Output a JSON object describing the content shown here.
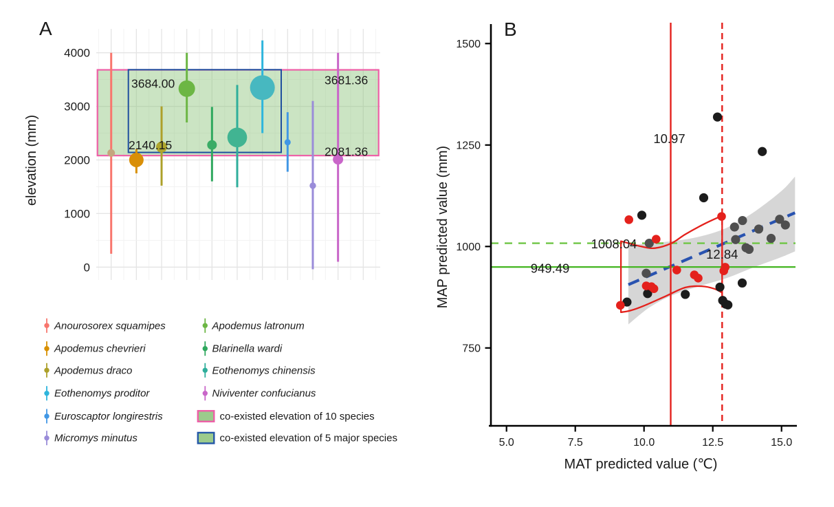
{
  "figure": {
    "panel_a_label": "A",
    "panel_b_label": "B",
    "background": "#ffffff"
  },
  "chart_data": [
    {
      "type": "scatter",
      "panel": "A",
      "ylabel": "elevation (mm)",
      "yticks": [
        0,
        1000,
        2000,
        3000,
        4000
      ],
      "ytick_labels": [
        "0",
        "1000",
        "2000",
        "3000",
        "4000"
      ],
      "ylim": [
        -500,
        4600
      ],
      "grid": true,
      "species": [
        {
          "name": "Anourosorex squamipes",
          "color": "#F8766D",
          "dot_color": "#C4A67E",
          "range_low": 250,
          "range_high": 4000,
          "dot_value": 2130,
          "dot_radius": 5.5
        },
        {
          "name": "Apodemus chevrieri",
          "color": "#D89000",
          "dot_color": "#D98F07",
          "range_low": 1750,
          "range_high": 2200,
          "dot_value": 2000,
          "dot_radius": 10.5
        },
        {
          "name": "Apodemus draco",
          "color": "#ADA02A",
          "dot_color": "#AFA62E",
          "range_low": 1520,
          "range_high": 3000,
          "dot_value": 2240,
          "dot_radius": 8
        },
        {
          "name": "Apodemus latronum",
          "color": "#6CB644",
          "dot_color": "#6CB644",
          "range_low": 2700,
          "range_high": 4000,
          "dot_value": 3330,
          "dot_radius": 12
        },
        {
          "name": "Blarinella wardi",
          "color": "#2FA85E",
          "dot_color": "#3BAC66",
          "range_low": 1600,
          "range_high": 2990,
          "dot_value": 2280,
          "dot_radius": 7
        },
        {
          "name": "Eothenomys chinensis",
          "color": "#2FAE9B",
          "dot_color": "#41B492",
          "range_low": 1490,
          "range_high": 3400,
          "dot_value": 2420,
          "dot_radius": 14.3
        },
        {
          "name": "Eothenomys proditor",
          "color": "#2EB5DC",
          "dot_color": "#47B8C0",
          "range_low": 2500,
          "range_high": 4230,
          "dot_value": 3350,
          "dot_radius": 18
        },
        {
          "name": "Euroscaptor longirestris",
          "color": "#4197E5",
          "dot_color": "#4197E5",
          "range_low": 1780,
          "range_high": 2890,
          "dot_value": 2330,
          "dot_radius": 4.5
        },
        {
          "name": "Micromys minutus",
          "color": "#9A8CD9",
          "dot_color": "#9A8CD9",
          "range_low": -40,
          "range_high": 3100,
          "dot_value": 1520,
          "dot_radius": 4.7
        },
        {
          "name": "Niviventer confucianus",
          "color": "#C966C9",
          "dot_color": "#C966C9",
          "range_low": 100,
          "range_high": 4000,
          "dot_value": 2010,
          "dot_radius": 7.5
        }
      ],
      "regions": [
        {
          "name": "co-existed elevation of 10 species",
          "low": 2081.36,
          "high": 3681.36,
          "border_color": "#EE5FA7",
          "fill": "rgba(139,195,121,0.45)",
          "label_low": "2081.36",
          "label_high": "3681.36",
          "label_color": "#E4211C"
        },
        {
          "name": "co-existed elevation of 5 major species",
          "low": 2140.15,
          "high": 3684.0,
          "border_color": "#1F4E9E",
          "fill": "none",
          "label_low": "2140.15",
          "label_high": "3684.00",
          "label_color": "#1F4E9E"
        }
      ]
    },
    {
      "type": "scatter",
      "panel": "B",
      "xlabel": "MAT predicted value (℃)",
      "ylabel": "MAP predicted value (mm)",
      "xticks": [
        5.0,
        7.5,
        10.0,
        12.5,
        15.0
      ],
      "xtick_labels": [
        "5.0",
        "7.5",
        "10.0",
        "12.5",
        "15.0"
      ],
      "yticks": [
        750,
        1000,
        1250,
        1500
      ],
      "ytick_labels": [
        "750",
        "1000",
        "1250",
        "1500"
      ],
      "xlim": [
        4.45,
        15.55
      ],
      "ylim": [
        560,
        1550
      ],
      "point_colors": {
        "black": "#1C1C1C",
        "grey": "#4F4F4F",
        "red": "#E4211C"
      },
      "points_black": [
        [
          12.67,
          1319
        ],
        [
          14.3,
          1234
        ],
        [
          12.17,
          1120
        ],
        [
          9.92,
          1077
        ],
        [
          11.5,
          882
        ],
        [
          12.76,
          900
        ],
        [
          12.86,
          867
        ],
        [
          12.97,
          858
        ],
        [
          13.05,
          856
        ],
        [
          13.57,
          910
        ],
        [
          9.38,
          863
        ],
        [
          10.13,
          884
        ]
      ],
      "points_grey": [
        [
          10.08,
          934
        ],
        [
          10.19,
          1008
        ],
        [
          13.29,
          1048
        ],
        [
          13.33,
          1017
        ],
        [
          13.58,
          1064
        ],
        [
          13.71,
          997
        ],
        [
          13.82,
          993
        ],
        [
          14.17,
          1043
        ],
        [
          14.62,
          1020
        ],
        [
          14.93,
          1067
        ],
        [
          15.14,
          1053
        ]
      ],
      "points_red": [
        [
          9.14,
          855
        ],
        [
          9.45,
          1066
        ],
        [
          10.08,
          903
        ],
        [
          10.27,
          901
        ],
        [
          10.36,
          896
        ],
        [
          10.44,
          1018
        ],
        [
          11.19,
          942
        ],
        [
          11.83,
          930
        ],
        [
          11.97,
          922
        ],
        [
          12.82,
          1074
        ],
        [
          12.95,
          949
        ],
        [
          12.9,
          940
        ]
      ],
      "regression_line": {
        "x1": 9.43,
        "y1": 906,
        "x2": 15.49,
        "y2": 1083,
        "color": "#2953B0",
        "style": "dashed"
      },
      "confidence_band": {
        "color": "rgba(120,120,120,0.30)",
        "top": [
          [
            9.43,
            1003
          ],
          [
            10,
            1007
          ],
          [
            11,
            1013
          ],
          [
            12,
            1024
          ],
          [
            13,
            1046
          ],
          [
            14,
            1085
          ],
          [
            15,
            1137
          ],
          [
            15.49,
            1172
          ]
        ],
        "bottom": [
          [
            9.43,
            808
          ],
          [
            10.2,
            850
          ],
          [
            11,
            879
          ],
          [
            12,
            902
          ],
          [
            13,
            922
          ],
          [
            14,
            949
          ],
          [
            15,
            974
          ],
          [
            15.49,
            988
          ]
        ]
      },
      "vlines": [
        {
          "x": 10.97,
          "label": "10.97",
          "style": "solid",
          "color": "#E4211C"
        },
        {
          "x": 12.84,
          "label": "12.84",
          "style": "dashed",
          "color": "#E4211C"
        }
      ],
      "hlines": [
        {
          "y": 949.49,
          "label": "949.49",
          "style": "solid",
          "color": "#44B521"
        },
        {
          "y": 1008.04,
          "label": "1008.04",
          "style": "dashed",
          "color": "#6EC544"
        }
      ],
      "red_envelope": {
        "color": "#E4211C",
        "left_x": 9.16,
        "left_low": 838,
        "left_high": 1013,
        "right_x": 12.84,
        "right_low": 886,
        "right_high": 1076,
        "top": [
          [
            9.16,
            1013
          ],
          [
            9.9,
            1000
          ],
          [
            10.4,
            996
          ],
          [
            11.0,
            1008
          ],
          [
            11.5,
            1030
          ],
          [
            12.2,
            1056
          ],
          [
            12.84,
            1076
          ]
        ],
        "bottom": [
          [
            12.84,
            886
          ],
          [
            12.55,
            896
          ],
          [
            12.1,
            902
          ],
          [
            11.5,
            899
          ],
          [
            10.8,
            878
          ],
          [
            10.0,
            854
          ],
          [
            9.5,
            842
          ],
          [
            9.16,
            838
          ]
        ]
      }
    }
  ],
  "legend": {
    "columns": [
      {
        "items": [
          {
            "kind": "species",
            "label": "Anourosorex squamipes",
            "color": "#F8766D"
          },
          {
            "kind": "species",
            "label": "Apodemus chevrieri",
            "color": "#D89000"
          },
          {
            "kind": "species",
            "label": "Apodemus draco",
            "color": "#ADA02A"
          },
          {
            "kind": "species",
            "label": "Eothenomys proditor",
            "color": "#2EB5DC"
          },
          {
            "kind": "species",
            "label": "Euroscaptor longirestris",
            "color": "#4197E5"
          },
          {
            "kind": "species",
            "label": "Micromys minutus",
            "color": "#9A8CD9"
          }
        ]
      },
      {
        "items": [
          {
            "kind": "species",
            "label": "Apodemus latronum",
            "color": "#6CB644"
          },
          {
            "kind": "species",
            "label": "Blarinella wardi",
            "color": "#2FA85E"
          },
          {
            "kind": "species",
            "label": "Eothenomys chinensis",
            "color": "#2FAE9B"
          },
          {
            "kind": "species",
            "label": "Niviventer confucianus",
            "color": "#C966C9"
          },
          {
            "kind": "region",
            "label": "co-existed elevation of 10 species",
            "fill": "#9CCB8C",
            "border": "#EE5FA7"
          },
          {
            "kind": "region",
            "label": "co-existed elevation of 5 major species",
            "fill": "#9CCB8C",
            "border": "#2457A7"
          }
        ]
      }
    ]
  }
}
